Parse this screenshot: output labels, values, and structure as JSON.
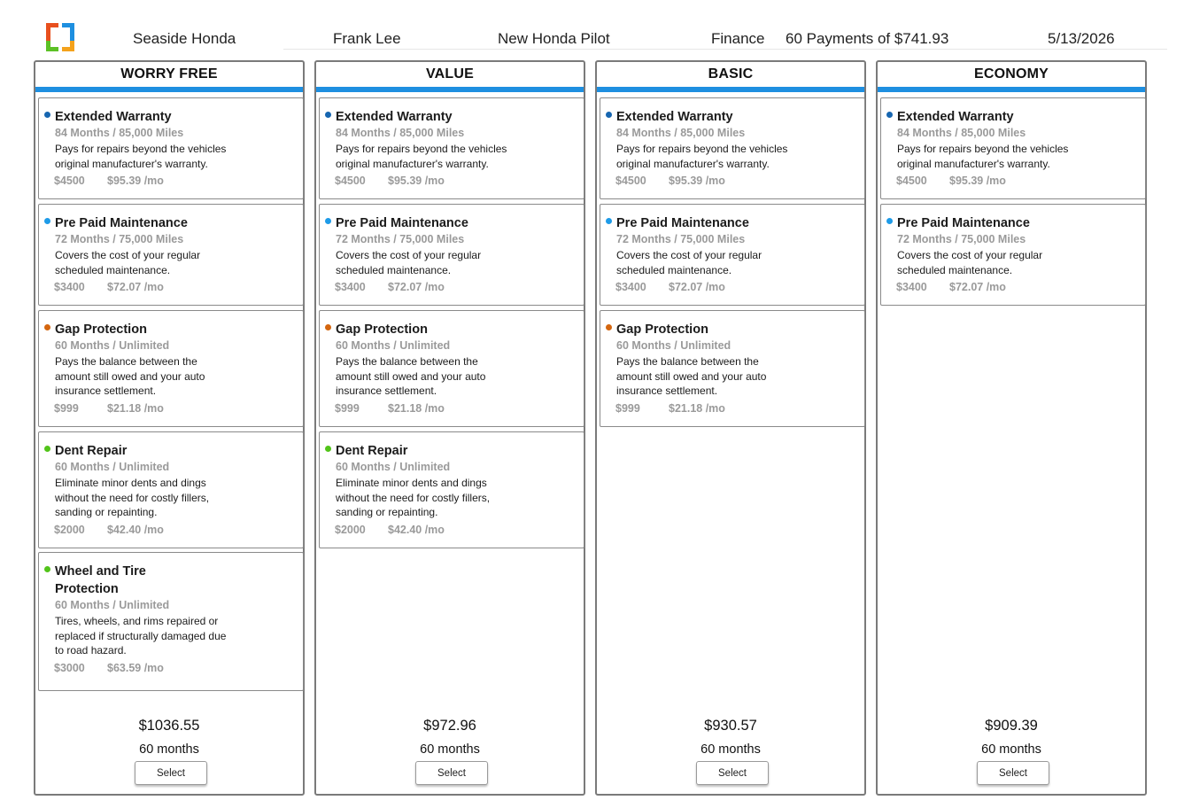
{
  "header": {
    "dealer": "Seaside Honda",
    "customer": "Frank Lee",
    "vehicle": "New Honda Pilot",
    "deal_type": "Finance",
    "payment_summary": "60 Payments of $741.93",
    "date": "5/13/2026",
    "logo_icon": "colored-brackets-logo",
    "logo_colors": [
      "#e8501e",
      "#1e8fe0",
      "#5cc125",
      "#f4a21c"
    ]
  },
  "accent_color": "#1e8fe0",
  "packages": [
    {
      "title": "WORRY FREE",
      "total": "$1036.55",
      "months": "60 months",
      "select_label": "Select",
      "products": [
        {
          "name": "Extended Warranty",
          "term": "84 Months / 85,000 Miles",
          "desc_lines": [
            "Pays for repairs beyond the vehicles",
            "original manufacturer's warranty."
          ],
          "price": "$4500",
          "monthly": "$95.39 /mo",
          "color": "#1766b0"
        },
        {
          "name": "Pre Paid Maintenance",
          "term": "72 Months / 75,000 Miles",
          "desc_lines": [
            "Covers the cost of your regular",
            "scheduled maintenance."
          ],
          "price": "$3400",
          "monthly": "$72.07 /mo",
          "color": "#1e9be8"
        },
        {
          "name": "Gap Protection",
          "term": "60 Months / Unlimited",
          "desc_lines": [
            "Pays the balance between the",
            "amount still owed and your auto",
            "insurance settlement."
          ],
          "price": "$999",
          "monthly": "$21.18 /mo",
          "color": "#d4660f"
        },
        {
          "name": "Dent Repair",
          "term": "60 Months / Unlimited",
          "desc_lines": [
            "Eliminate minor dents and dings",
            "without the need for costly fillers,",
            "sanding or repainting."
          ],
          "price": "$2000",
          "monthly": "$42.40 /mo",
          "color": "#52c41a"
        },
        {
          "name_lines": [
            "Wheel and Tire",
            "Protection"
          ],
          "term": "60 Months / Unlimited",
          "desc_lines": [
            "Tires, wheels, and rims repaired or",
            "replaced if structurally damaged due",
            "to road hazard."
          ],
          "price": "$3000",
          "monthly": "$63.59 /mo",
          "color": "#52c41a"
        }
      ]
    },
    {
      "title": "VALUE",
      "total": "$972.96",
      "months": "60 months",
      "select_label": "Select",
      "products": [
        {
          "name": "Extended Warranty",
          "term": "84 Months / 85,000 Miles",
          "desc_lines": [
            "Pays for repairs beyond the vehicles",
            "original manufacturer's warranty."
          ],
          "price": "$4500",
          "monthly": "$95.39 /mo",
          "color": "#1766b0"
        },
        {
          "name": "Pre Paid Maintenance",
          "term": "72 Months / 75,000 Miles",
          "desc_lines": [
            "Covers the cost of your regular",
            "scheduled maintenance."
          ],
          "price": "$3400",
          "monthly": "$72.07 /mo",
          "color": "#1e9be8"
        },
        {
          "name": "Gap Protection",
          "term": "60 Months / Unlimited",
          "desc_lines": [
            "Pays the balance between the",
            "amount still owed and your auto",
            "insurance settlement."
          ],
          "price": "$999",
          "monthly": "$21.18 /mo",
          "color": "#d4660f"
        },
        {
          "name": "Dent Repair",
          "term": "60 Months / Unlimited",
          "desc_lines": [
            "Eliminate minor dents and dings",
            "without the need for costly fillers,",
            "sanding or repainting."
          ],
          "price": "$2000",
          "monthly": "$42.40 /mo",
          "color": "#52c41a"
        }
      ]
    },
    {
      "title": "BASIC",
      "total": "$930.57",
      "months": "60 months",
      "select_label": "Select",
      "products": [
        {
          "name": "Extended Warranty",
          "term": "84 Months / 85,000 Miles",
          "desc_lines": [
            "Pays for repairs beyond the vehicles",
            "original manufacturer's warranty."
          ],
          "price": "$4500",
          "monthly": "$95.39 /mo",
          "color": "#1766b0"
        },
        {
          "name": "Pre Paid Maintenance",
          "term": "72 Months / 75,000 Miles",
          "desc_lines": [
            "Covers the cost of your regular",
            "scheduled maintenance."
          ],
          "price": "$3400",
          "monthly": "$72.07 /mo",
          "color": "#1e9be8"
        },
        {
          "name": "Gap Protection",
          "term": "60 Months / Unlimited",
          "desc_lines": [
            "Pays the balance between the",
            "amount still owed and your auto",
            "insurance settlement."
          ],
          "price": "$999",
          "monthly": "$21.18 /mo",
          "color": "#d4660f"
        }
      ]
    },
    {
      "title": "ECONOMY",
      "total": "$909.39",
      "months": "60 months",
      "select_label": "Select",
      "products": [
        {
          "name": "Extended Warranty",
          "term": "84 Months / 85,000 Miles",
          "desc_lines": [
            "Pays for repairs beyond the vehicles",
            "original manufacturer's warranty."
          ],
          "price": "$4500",
          "monthly": "$95.39 /mo",
          "color": "#1766b0"
        },
        {
          "name": "Pre Paid Maintenance",
          "term": "72 Months / 75,000 Miles",
          "desc_lines": [
            "Covers the cost of your regular",
            "scheduled maintenance."
          ],
          "price": "$3400",
          "monthly": "$72.07 /mo",
          "color": "#1e9be8"
        }
      ]
    }
  ]
}
